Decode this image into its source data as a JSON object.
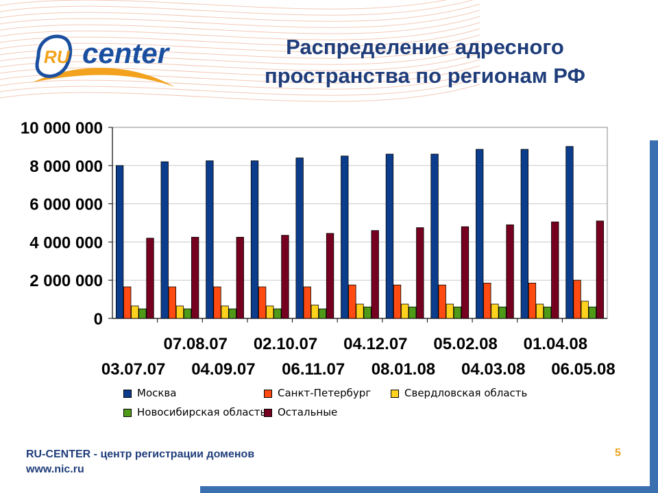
{
  "slide": {
    "title_line1": "Распределение адресного",
    "title_line2": "пространства по регионам РФ",
    "logo_text_ru": "RU",
    "logo_text_center": "center",
    "footer_line1": "RU-CENTER - центр регистрации доменов",
    "footer_line2": "www.nic.ru",
    "page_number": "5"
  },
  "colors": {
    "title": "#1f3d7a",
    "frame": "#3a6fb0",
    "accent_orange": "#e8a11e"
  },
  "chart_data": {
    "type": "bar",
    "title": "",
    "xlabel": "",
    "ylabel": "",
    "ylim": [
      0,
      10000000
    ],
    "yticks": [
      "0",
      "2 000 000",
      "4 000 000",
      "6 000 000",
      "8 000 000",
      "10 000 000"
    ],
    "grid": true,
    "legend_position": "bottom",
    "categories": [
      "03.07.07",
      "07.08.07",
      "04.09.07",
      "02.10.07",
      "06.11.07",
      "04.12.07",
      "08.01.08",
      "05.02.08",
      "04.03.08",
      "01.04.08",
      "06.05.08"
    ],
    "series": [
      {
        "name": "Москва",
        "color": "#0b3d8c",
        "values": [
          8000000,
          8200000,
          8250000,
          8250000,
          8400000,
          8500000,
          8600000,
          8600000,
          8850000,
          8850000,
          9000000
        ]
      },
      {
        "name": "Санкт-Петербург",
        "color": "#ff4a12",
        "values": [
          1650000,
          1650000,
          1650000,
          1650000,
          1650000,
          1750000,
          1750000,
          1750000,
          1850000,
          1850000,
          2000000
        ]
      },
      {
        "name": "Свердловская область",
        "color": "#ffd21e",
        "values": [
          650000,
          650000,
          650000,
          650000,
          700000,
          750000,
          750000,
          750000,
          750000,
          750000,
          900000
        ]
      },
      {
        "name": "Новосибирская область",
        "color": "#4f9a18",
        "values": [
          500000,
          500000,
          500000,
          500000,
          500000,
          600000,
          600000,
          600000,
          600000,
          600000,
          600000
        ]
      },
      {
        "name": "Остальные",
        "color": "#76001f",
        "values": [
          4200000,
          4250000,
          4250000,
          4350000,
          4450000,
          4600000,
          4750000,
          4800000,
          4900000,
          5050000,
          5100000
        ]
      }
    ]
  }
}
